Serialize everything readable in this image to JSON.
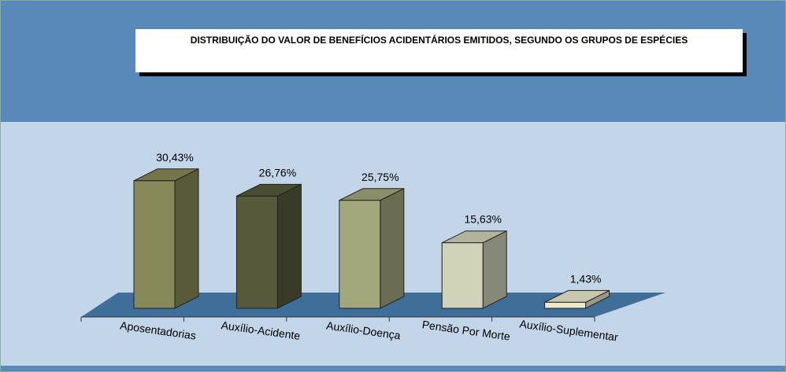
{
  "chart_data": {
    "type": "bar3d",
    "title": "DISTRIBUIÇÃO DO VALOR DE BENEFÍCIOS ACIDENTÁRIOS EMITIDOS, SEGUNDO OS GRUPOS DE ESPÉCIES",
    "categories": [
      "Aposentadorias",
      "Auxílio-Acidente",
      "Auxílio-Doença",
      "Pensão Por Morte",
      "Auxílio-Suplementar"
    ],
    "values": [
      30.43,
      26.76,
      25.75,
      15.63,
      1.43
    ],
    "value_labels": [
      "30,43%",
      "26,76%",
      "25,75%",
      "15,63%",
      "1,43%"
    ],
    "colors": [
      "#878a58",
      "#565a3a",
      "#a3a87c",
      "#d0d3b8",
      "#ebe9cc"
    ]
  }
}
